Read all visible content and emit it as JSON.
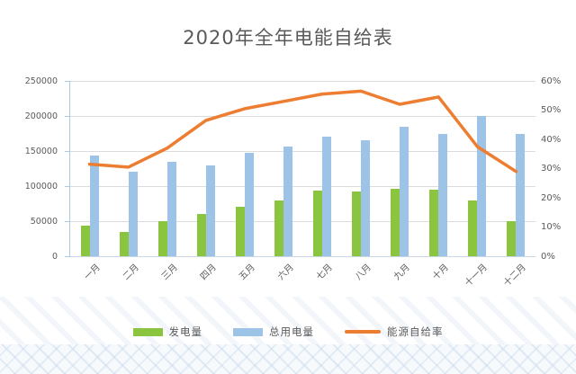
{
  "title": "2020年全年电能自给表",
  "chart_data": {
    "type": "combo-bar-line",
    "title": "2020年全年电能自给表",
    "categories": [
      "一月",
      "二月",
      "三月",
      "四月",
      "五月",
      "六月",
      "七月",
      "八月",
      "九月",
      "十月",
      "十一月",
      "十二月"
    ],
    "series": [
      {
        "name": "发电量",
        "type": "bar",
        "axis": "left",
        "color": "#8BC53F",
        "values": [
          44000,
          35000,
          50000,
          60000,
          70000,
          80000,
          93000,
          92000,
          96000,
          95000,
          79000,
          50000
        ]
      },
      {
        "name": "总用电量",
        "type": "bar",
        "axis": "left",
        "color": "#9DC3E6",
        "values": [
          143000,
          120000,
          135000,
          130000,
          148000,
          156000,
          170000,
          166000,
          184000,
          174000,
          200000,
          174000
        ]
      },
      {
        "name": "能源自给率",
        "type": "line",
        "axis": "right",
        "color": "#ED7D31",
        "unit": "%",
        "values": [
          31.5,
          30.5,
          37,
          46.5,
          50.5,
          53,
          55.5,
          56.5,
          52,
          54.5,
          37.5,
          29
        ]
      }
    ],
    "left_axis": {
      "min": 0,
      "max": 250000,
      "tick_step": 50000,
      "tick_labels": [
        "0",
        "50000",
        "100000",
        "150000",
        "200000",
        "250000"
      ]
    },
    "right_axis": {
      "min": 0,
      "max": 60,
      "tick_step": 10,
      "tick_labels": [
        "0%",
        "10%",
        "20%",
        "30%",
        "40%",
        "50%",
        "60%"
      ]
    },
    "grid": true,
    "legend_position": "bottom"
  },
  "colors": {
    "background": "#FFFFFF",
    "title_text": "#595959",
    "axis_text": "#595959",
    "gridline": "#DCDCDC",
    "axis_line_blue": "#A6C9E8",
    "bottom_axis_line": "#C9D6E4",
    "bar_green": "#8BC53F",
    "bar_blue": "#9DC3E6",
    "line_orange": "#ED7D31",
    "watermark_stripe": "#D5E2F1"
  }
}
